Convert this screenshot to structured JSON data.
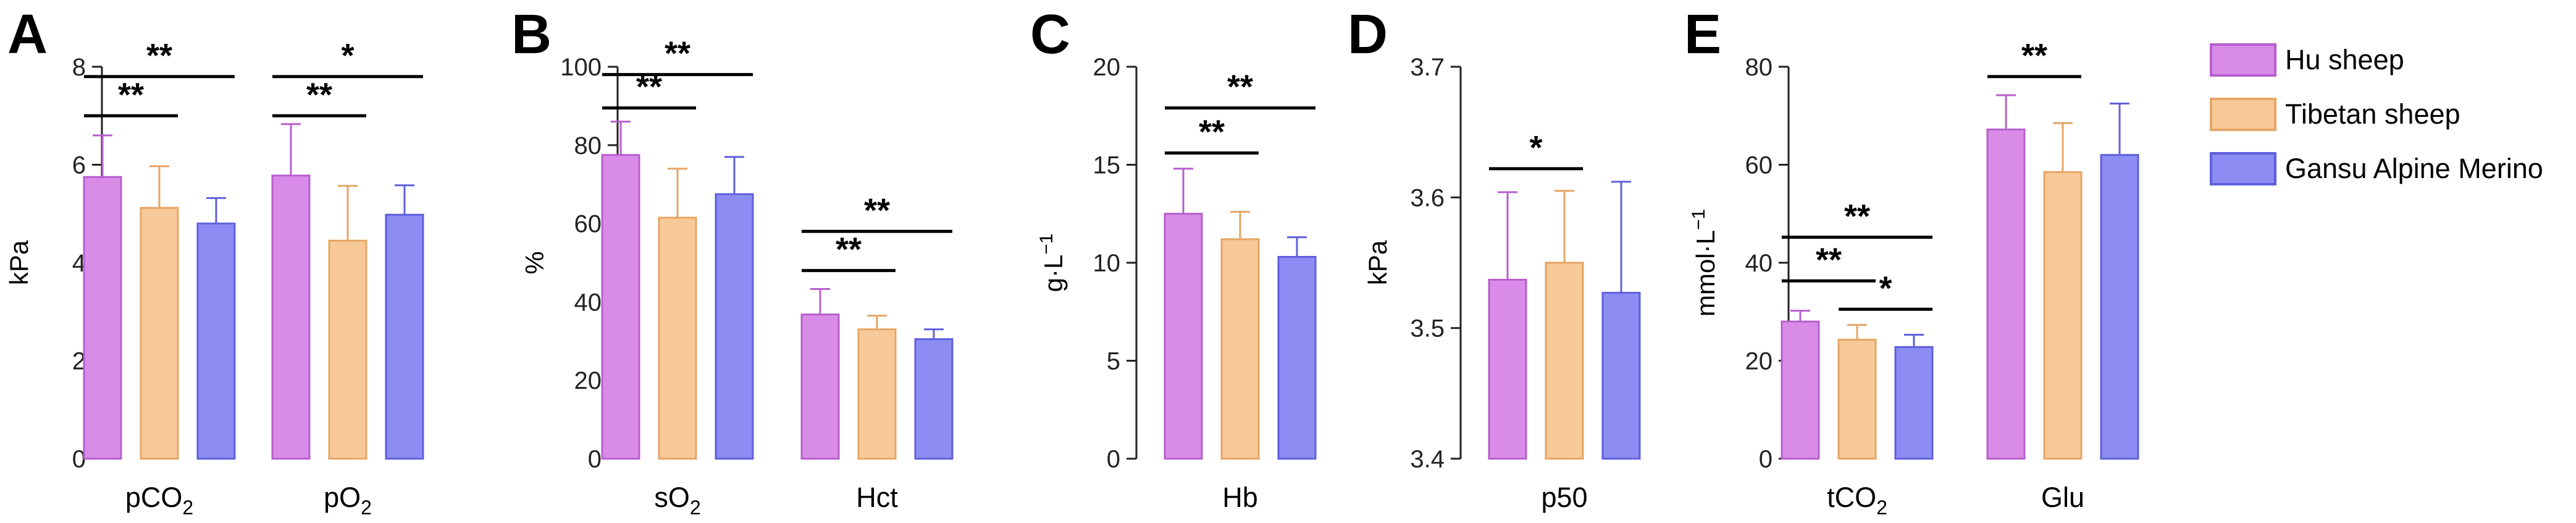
{
  "legend": {
    "items": [
      {
        "label": "Hu sheep",
        "fill": "#D98BE8",
        "stroke": "#B65FCC"
      },
      {
        "label": "Tibetan sheep",
        "fill": "#F8C998",
        "stroke": "#E5A564"
      },
      {
        "label": "Gansu Alpine Merino",
        "fill": "#8C8CF2",
        "stroke": "#5F5FDE"
      }
    ]
  },
  "chart_data": [
    {
      "panel": "A",
      "type": "bar",
      "ylabel": "kPa",
      "ylim": [
        0,
        8
      ],
      "yticks": [
        {
          "v": 0,
          "t": "0"
        },
        {
          "v": 2,
          "t": "2"
        },
        {
          "v": 4,
          "t": "4"
        },
        {
          "v": 6,
          "t": "6"
        },
        {
          "v": 8,
          "t": "8"
        }
      ],
      "categories": [
        {
          "label": "pCO",
          "sub": "2"
        },
        {
          "label": "pO",
          "sub": "2"
        }
      ],
      "series": [
        {
          "name": "Hu sheep",
          "values": [
            5.75,
            5.78
          ],
          "errors": [
            0.85,
            1.05
          ]
        },
        {
          "name": "Tibetan sheep",
          "values": [
            5.12,
            4.45
          ],
          "errors": [
            0.85,
            1.12
          ]
        },
        {
          "name": "Gansu Alpine Merino",
          "values": [
            4.8,
            4.98
          ],
          "errors": [
            0.52,
            0.6
          ]
        }
      ],
      "significance": [
        {
          "cat": 0,
          "from": 0,
          "to": 1,
          "label": "**",
          "level": 7.0
        },
        {
          "cat": 0,
          "from": 0,
          "to": 2,
          "label": "**",
          "level": 7.8
        },
        {
          "cat": 1,
          "from": 0,
          "to": 1,
          "label": "**",
          "level": 7.0
        },
        {
          "cat": 1,
          "from": 0,
          "to": 2,
          "label": "*",
          "level": 7.8
        }
      ]
    },
    {
      "panel": "B",
      "type": "bar",
      "ylabel": "%",
      "ylim": [
        0,
        100
      ],
      "yticks": [
        {
          "v": 0,
          "t": "0"
        },
        {
          "v": 20,
          "t": "20"
        },
        {
          "v": 40,
          "t": "40"
        },
        {
          "v": 60,
          "t": "60"
        },
        {
          "v": 80,
          "t": "80"
        },
        {
          "v": 100,
          "t": "100"
        }
      ],
      "categories": [
        {
          "label": "sO",
          "sub": "2"
        },
        {
          "label": "Hct",
          "sub": ""
        }
      ],
      "series": [
        {
          "name": "Hu sheep",
          "values": [
            77.5,
            36.8
          ],
          "errors": [
            8.5,
            6.5
          ]
        },
        {
          "name": "Tibetan sheep",
          "values": [
            61.5,
            33
          ],
          "errors": [
            12.5,
            3.5
          ]
        },
        {
          "name": "Gansu Alpine Merino",
          "values": [
            67.5,
            30.5
          ],
          "errors": [
            9.5,
            2.5
          ]
        }
      ],
      "significance": [
        {
          "cat": 0,
          "from": 0,
          "to": 1,
          "label": "**",
          "level": 89.5
        },
        {
          "cat": 0,
          "from": 0,
          "to": 2,
          "label": "**",
          "level": 98.0
        },
        {
          "cat": 1,
          "from": 0,
          "to": 1,
          "label": "**",
          "level": 48.0
        },
        {
          "cat": 1,
          "from": 0,
          "to": 2,
          "label": "**",
          "level": 58.0
        }
      ]
    },
    {
      "panel": "C",
      "type": "bar",
      "ylabel": "g·L",
      "ylabel_sup": "−1",
      "ylim": [
        0,
        20
      ],
      "yticks": [
        {
          "v": 0,
          "t": "0"
        },
        {
          "v": 5,
          "t": "5"
        },
        {
          "v": 10,
          "t": "10"
        },
        {
          "v": 15,
          "t": "15"
        },
        {
          "v": 20,
          "t": "20"
        }
      ],
      "categories": [
        {
          "label": "Hb",
          "sub": ""
        }
      ],
      "series": [
        {
          "name": "Hu sheep",
          "values": [
            12.5
          ],
          "errors": [
            2.3
          ]
        },
        {
          "name": "Tibetan sheep",
          "values": [
            11.2
          ],
          "errors": [
            1.4
          ]
        },
        {
          "name": "Gansu Alpine Merino",
          "values": [
            10.3
          ],
          "errors": [
            1.0
          ]
        }
      ],
      "significance": [
        {
          "cat": 0,
          "from": 0,
          "to": 1,
          "label": "**",
          "level": 15.6
        },
        {
          "cat": 0,
          "from": 0,
          "to": 2,
          "label": "**",
          "level": 17.9
        }
      ]
    },
    {
      "panel": "D",
      "type": "bar",
      "ylabel": "kPa",
      "ylim": [
        3.4,
        3.7
      ],
      "yticks": [
        {
          "v": 3.4,
          "t": "3.4"
        },
        {
          "v": 3.5,
          "t": "3.5"
        },
        {
          "v": 3.6,
          "t": "3.6"
        },
        {
          "v": 3.7,
          "t": "3.7"
        }
      ],
      "categories": [
        {
          "label": "p50",
          "sub": ""
        }
      ],
      "series": [
        {
          "name": "Hu sheep",
          "values": [
            3.537
          ],
          "errors": [
            0.067
          ]
        },
        {
          "name": "Tibetan sheep",
          "values": [
            3.55
          ],
          "errors": [
            0.055
          ]
        },
        {
          "name": "Gansu Alpine Merino",
          "values": [
            3.527
          ],
          "errors": [
            0.085
          ]
        }
      ],
      "significance": [
        {
          "cat": 0,
          "from": 0,
          "to": 1,
          "label": "*",
          "level": 3.622
        }
      ]
    },
    {
      "panel": "E",
      "type": "bar",
      "ylabel": "mmol·L",
      "ylabel_sup": "−1",
      "ylim": [
        0,
        80
      ],
      "yticks": [
        {
          "v": 0,
          "t": "0"
        },
        {
          "v": 20,
          "t": "20"
        },
        {
          "v": 40,
          "t": "40"
        },
        {
          "v": 60,
          "t": "60"
        },
        {
          "v": 80,
          "t": "80"
        }
      ],
      "categories": [
        {
          "label": "tCO",
          "sub": "2"
        },
        {
          "label": "Glu",
          "sub": ""
        }
      ],
      "series": [
        {
          "name": "Hu sheep",
          "values": [
            28,
            67.2
          ],
          "errors": [
            2.2,
            7
          ]
        },
        {
          "name": "Tibetan sheep",
          "values": [
            24.3,
            58.5
          ],
          "errors": [
            3,
            10
          ]
        },
        {
          "name": "Gansu Alpine Merino",
          "values": [
            22.8,
            62
          ],
          "errors": [
            2.5,
            10.5
          ]
        }
      ],
      "significance": [
        {
          "cat": 0,
          "from": 1,
          "to": 2,
          "label": "*",
          "level": 30.5
        },
        {
          "cat": 0,
          "from": 0,
          "to": 1,
          "label": "**",
          "level": 36.3
        },
        {
          "cat": 0,
          "from": 0,
          "to": 2,
          "label": "**",
          "level": 45.2
        },
        {
          "cat": 1,
          "from": 0,
          "to": 1,
          "label": "**",
          "level": 78.0
        }
      ]
    }
  ]
}
